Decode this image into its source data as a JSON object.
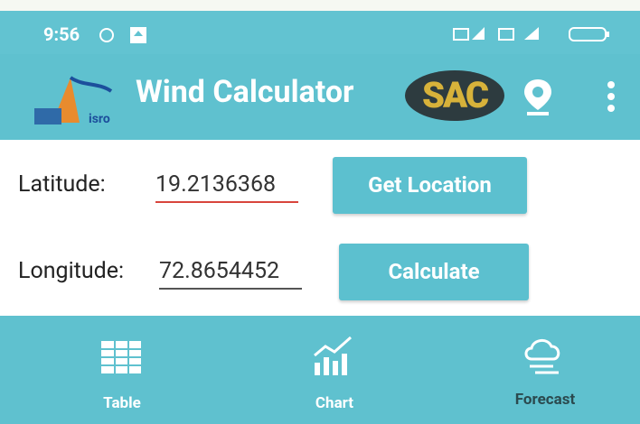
{
  "status_bar": {
    "time": "9:56"
  },
  "app_bar": {
    "title": "Wind Calculator",
    "logo_text": "SAC"
  },
  "form": {
    "latitude": {
      "label": "Latitude:",
      "value": "19.2136368",
      "button": "Get Location"
    },
    "longitude": {
      "label": "Longitude:",
      "value": "72.8654452",
      "button": "Calculate"
    }
  },
  "nav": {
    "items": [
      "Table",
      "Chart",
      "Forecast"
    ]
  }
}
